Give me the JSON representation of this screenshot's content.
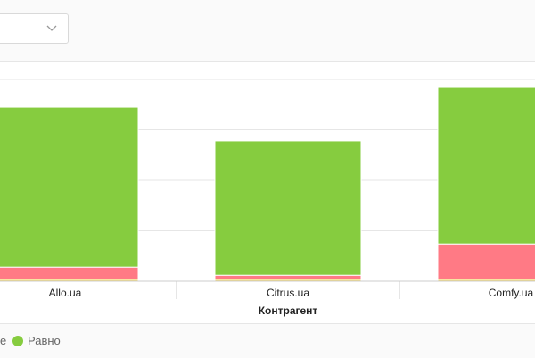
{
  "filter": {
    "icon": "chevron-down-icon"
  },
  "chart_data": {
    "type": "bar",
    "stacked": true,
    "categories": [
      "Allo.ua",
      "Citrus.ua",
      "Comfy.ua"
    ],
    "xlabel": "Контрагент",
    "ylabel": "",
    "ylim": [
      0,
      400
    ],
    "grid": true,
    "series": [
      {
        "name": "",
        "color": "#f5d76e",
        "values": [
          4,
          4,
          4
        ]
      },
      {
        "name": "",
        "color": "#ff7a85",
        "values": [
          24,
          8,
          70
        ]
      },
      {
        "name": "Равно",
        "color": "#86cc3f",
        "values": [
          317,
          266,
          310
        ]
      }
    ],
    "legend": {
      "placement": "bottom-left",
      "partial_item_text": "е",
      "items": [
        {
          "label": "Равно",
          "color": "#86cc3f"
        }
      ]
    }
  }
}
